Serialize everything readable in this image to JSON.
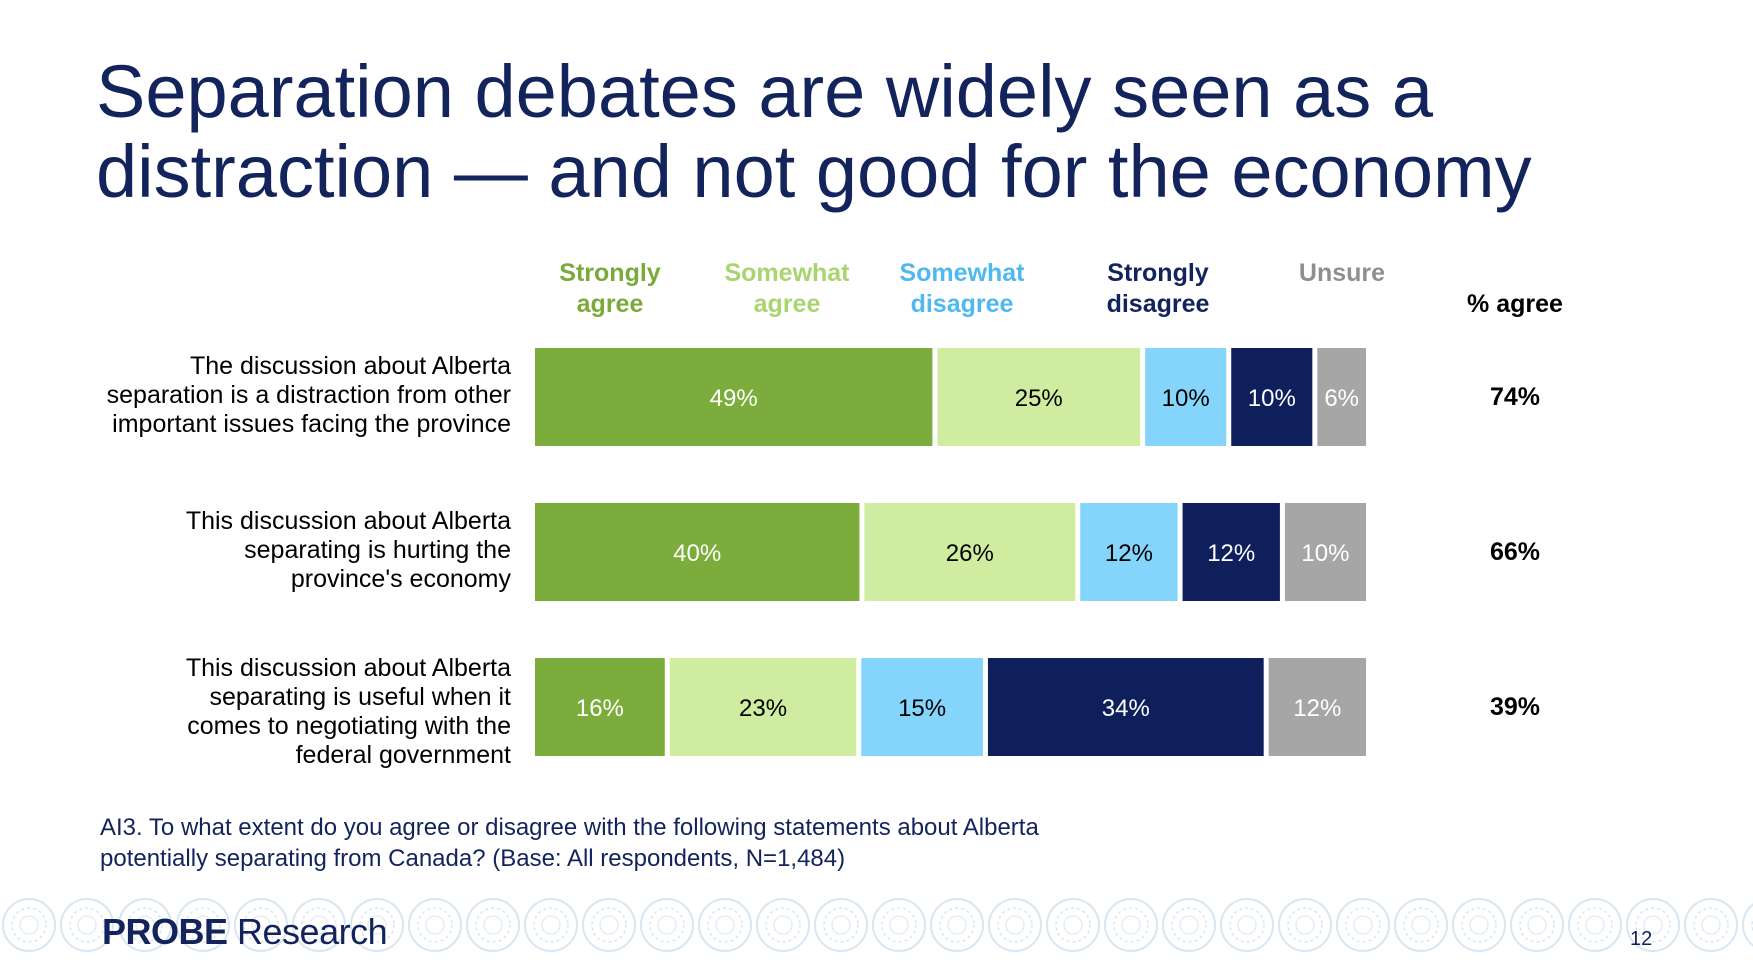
{
  "title": {
    "line1": "Separation debates are widely seen as a",
    "line2": "distraction — and not good for the economy"
  },
  "columns": [
    {
      "line1": "Strongly",
      "line2": "agree",
      "color": "#7aab3a"
    },
    {
      "line1": "Somewhat",
      "line2": "agree",
      "color": "#a9d46f"
    },
    {
      "line1": "Somewhat",
      "line2": "disagree",
      "color": "#4fb8ef"
    },
    {
      "line1": "Strongly",
      "line2": "disagree",
      "color": "#13235b"
    },
    {
      "line1": "",
      "line2": "Unsure",
      "color": "#8f8f8f"
    }
  ],
  "pct_agree_header": "% agree",
  "chart_data": {
    "type": "bar",
    "orientation": "horizontal",
    "stacked": true,
    "categories": [
      "The discussion about Alberta separation is a distraction from other important issues facing the province",
      "This discussion about Alberta separating is hurting the province's economy",
      "This discussion about Alberta separating is useful when it comes to negotiating with the federal government"
    ],
    "category_lines": [
      [
        "The discussion about Alberta",
        "separation is a distraction from other",
        "important issues facing the province"
      ],
      [
        "This discussion about Alberta",
        "separating is hurting the",
        "province's economy"
      ],
      [
        "This discussion about Alberta",
        "separating is useful when it",
        "comes to negotiating with the",
        "federal government"
      ]
    ],
    "series": [
      {
        "name": "Strongly agree",
        "values": [
          49,
          40,
          16
        ],
        "color": "#7cac3b",
        "label_color": "#ffffff"
      },
      {
        "name": "Somewhat agree",
        "values": [
          25,
          26,
          23
        ],
        "color": "#cfeca0",
        "label_color": "#000000"
      },
      {
        "name": "Somewhat disagree",
        "values": [
          10,
          12,
          15
        ],
        "color": "#85d4fb",
        "label_color": "#000000"
      },
      {
        "name": "Strongly disagree",
        "values": [
          10,
          12,
          34
        ],
        "color": "#0e1f5b",
        "label_color": "#ffffff"
      },
      {
        "name": "Unsure",
        "values": [
          6,
          10,
          12
        ],
        "color": "#a6a6a6",
        "label_color": "#ffffff"
      }
    ],
    "value_suffix": "%",
    "pct_agree": [
      "74%",
      "66%",
      "39%"
    ],
    "xlim": [
      0,
      100
    ],
    "legend_position": "top",
    "grid": false
  },
  "footnote": {
    "line1": "AI3. To what extent do you agree or disagree with the following statements about Alberta",
    "line2": "potentially separating from Canada? (Base: All respondents, N=1,484)"
  },
  "footer": {
    "logo_bold": "PROBE",
    "logo_light": " Research",
    "page_number": "12"
  }
}
